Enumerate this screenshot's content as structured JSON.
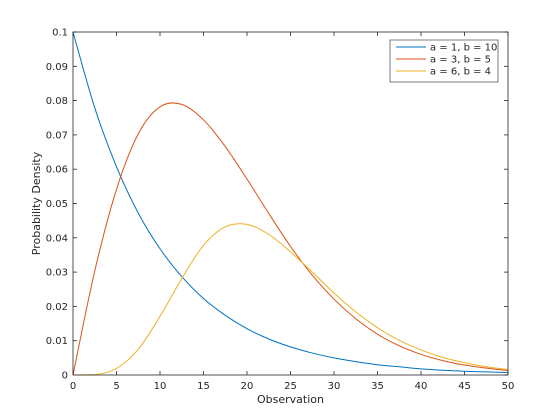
{
  "chart_data": {
    "type": "line",
    "title": "",
    "xlabel": "Observation",
    "ylabel": "Probability Density",
    "xlim": [
      0,
      50
    ],
    "ylim": [
      0,
      0.1
    ],
    "x_ticks": [
      0,
      5,
      10,
      15,
      20,
      25,
      30,
      35,
      40,
      45,
      50
    ],
    "y_ticks": [
      0,
      0.01,
      0.02,
      0.03,
      0.04,
      0.05,
      0.06,
      0.07,
      0.08,
      0.09,
      0.1
    ],
    "x_tick_labels": [
      "0",
      "5",
      "10",
      "15",
      "20",
      "25",
      "30",
      "35",
      "40",
      "45",
      "50"
    ],
    "y_tick_labels": [
      "0",
      "0.01",
      "0.02",
      "0.03",
      "0.04",
      "0.05",
      "0.06",
      "0.07",
      "0.08",
      "0.09",
      "0.1"
    ],
    "grid": false,
    "legend_position": "top-right",
    "x": [
      0,
      2.5,
      5,
      7.5,
      10,
      12.5,
      15,
      17.5,
      20,
      22.5,
      25,
      27.5,
      30,
      32.5,
      35,
      37.5,
      40,
      42.5,
      45,
      47.5,
      50
    ],
    "series": [
      {
        "name": "a = 1, b = 10",
        "color": "#0072bd",
        "values": [
          0.1,
          0.0779,
          0.0607,
          0.0472,
          0.0368,
          0.0287,
          0.0223,
          0.0174,
          0.0135,
          0.0105,
          0.0082,
          0.0064,
          0.005,
          0.0039,
          0.003,
          0.0024,
          0.0018,
          0.0014,
          0.0011,
          0.0009,
          0.0007
        ]
      },
      {
        "name": "a = 3, b = 5",
        "color": "#d95319",
        "values": [
          0,
          0.0303,
          0.0541,
          0.0703,
          0.0782,
          0.0789,
          0.0744,
          0.0666,
          0.0571,
          0.0471,
          0.0375,
          0.0291,
          0.0221,
          0.0164,
          0.0119,
          0.0085,
          0.006,
          0.0042,
          0.0029,
          0.002,
          0.0013
        ]
      },
      {
        "name": "a = 6, b = 4",
        "color": "#edb120",
        "values": [
          0,
          0.0001,
          0.0019,
          0.0075,
          0.0171,
          0.0281,
          0.0378,
          0.0432,
          0.0439,
          0.041,
          0.0359,
          0.03,
          0.0239,
          0.0184,
          0.0138,
          0.0101,
          0.0073,
          0.0051,
          0.0036,
          0.0024,
          0.0016
        ]
      }
    ]
  }
}
